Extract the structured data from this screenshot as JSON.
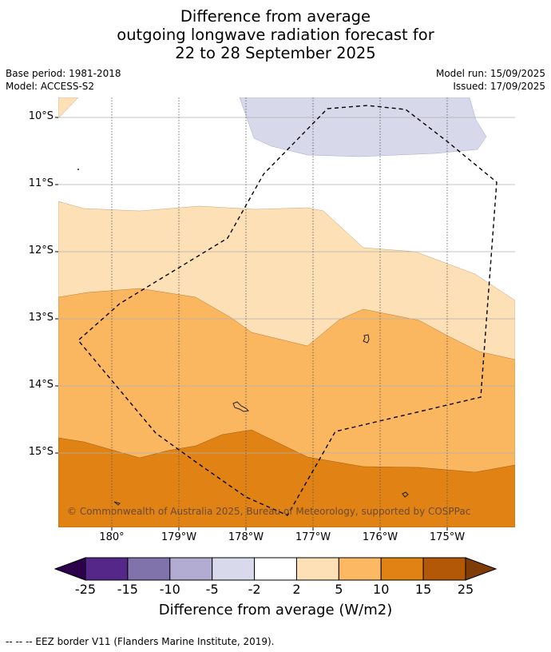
{
  "title": {
    "line1": "Difference from average",
    "line2": "outgoing longwave radiation forecast for",
    "line3": "22 to 28 September 2025"
  },
  "meta": {
    "base_period": "Base period: 1981-2018",
    "model": "Model: ACCESS-S2",
    "model_run": "Model run: 15/09/2025",
    "issued": "Issued: 17/09/2025"
  },
  "map": {
    "lat_labels": [
      "10°S",
      "11°S",
      "12°S",
      "13°S",
      "14°S",
      "15°S"
    ],
    "lon_labels": [
      "180°",
      "179°W",
      "178°W",
      "177°W",
      "176°W",
      "175°W"
    ],
    "copyright": "© Commonwealth of Australia 2025, Bureau of Meteorology, supported by COSPPac",
    "fill_colors": {
      "neg_5_to_2": "#d7d8ea",
      "pos_2_to_5": "#fde0b5",
      "pos_5_to_10": "#fbb660",
      "pos_10_to_15": "#e08214"
    }
  },
  "colorbar": {
    "ticks": [
      "-25",
      "-15",
      "-10",
      "-5",
      "-2",
      "2",
      "5",
      "10",
      "15",
      "25"
    ],
    "colors": [
      "#2d004b",
      "#542788",
      "#8073ac",
      "#b2abd2",
      "#d8daeb",
      "#ffffff",
      "#fee0b6",
      "#fdb863",
      "#e08214",
      "#b35806",
      "#7f3b08"
    ],
    "label": "Difference from average (W/m2)"
  },
  "footnote": "--  --  -- EEZ border V11 (Flanders Marine Institute, 2019)."
}
